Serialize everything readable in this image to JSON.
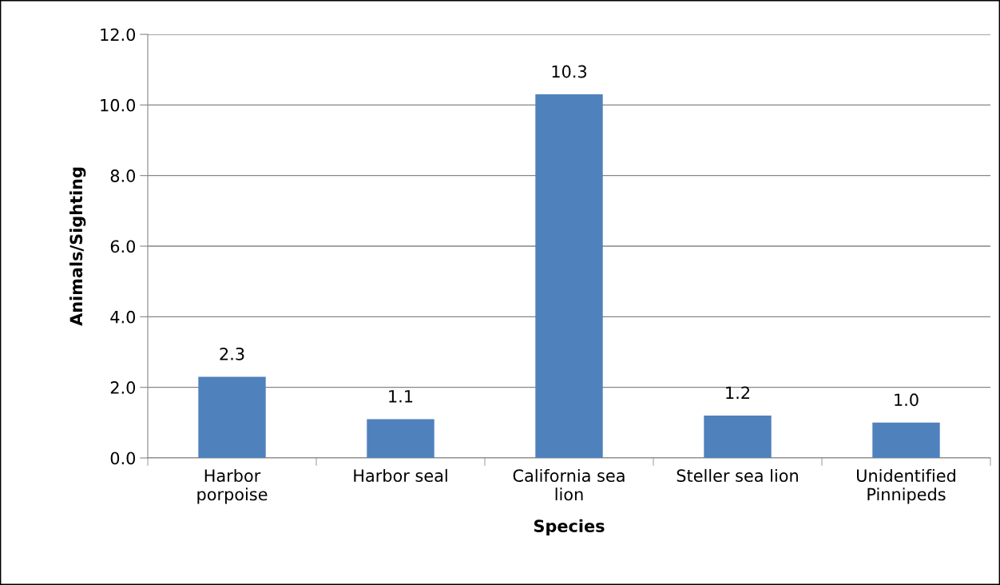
{
  "chart_data": {
    "type": "bar",
    "xlabel": "Species",
    "ylabel": "Animals/Sighting",
    "categories": [
      "Harbor\nporpoise",
      "Harbor seal",
      "California sea\nlion",
      "Steller sea lion",
      "Unidentified\nPinnipeds"
    ],
    "values": [
      2.3,
      1.1,
      10.3,
      1.2,
      1.0
    ],
    "value_labels": [
      "2.3",
      "1.1",
      "10.3",
      "1.2",
      "1.0"
    ],
    "color": "#4f81bd",
    "ylim": [
      0,
      12
    ],
    "yticks": [
      {
        "value": 0,
        "label": "0.0"
      },
      {
        "value": 2,
        "label": "2.0"
      },
      {
        "value": 4,
        "label": "4.0"
      },
      {
        "value": 6,
        "label": "6.0"
      },
      {
        "value": 8,
        "label": "8.0"
      },
      {
        "value": 10,
        "label": "10.0"
      },
      {
        "value": 12,
        "label": "12.0"
      }
    ],
    "grid": "y",
    "legend": false
  }
}
